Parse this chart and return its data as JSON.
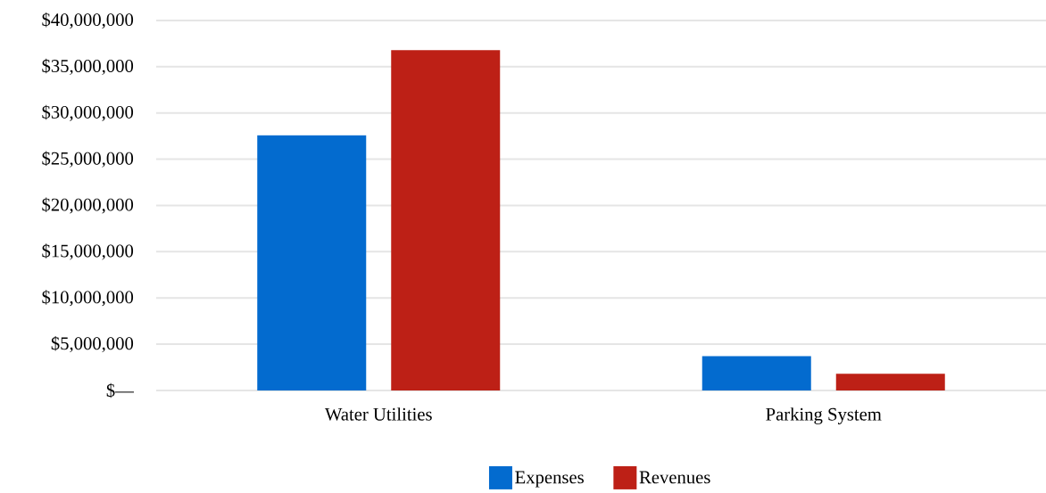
{
  "chart_data": {
    "type": "bar",
    "categories": [
      "Water Utilities",
      "Parking System"
    ],
    "series": [
      {
        "name": "Expenses",
        "color": "#036bcf",
        "values": [
          27600000,
          3700000
        ]
      },
      {
        "name": "Revenues",
        "color": "#bd2016",
        "values": [
          36800000,
          1800000
        ]
      }
    ],
    "ylim": [
      0,
      40000000
    ],
    "yticks": [
      {
        "value": 0,
        "label": "$—"
      },
      {
        "value": 5000000,
        "label": "$5,000,000"
      },
      {
        "value": 10000000,
        "label": "$10,000,000"
      },
      {
        "value": 15000000,
        "label": "$15,000,000"
      },
      {
        "value": 20000000,
        "label": "$20,000,000"
      },
      {
        "value": 25000000,
        "label": "$25,000,000"
      },
      {
        "value": 30000000,
        "label": "$30,000,000"
      },
      {
        "value": 35000000,
        "label": "$35,000,000"
      },
      {
        "value": 40000000,
        "label": "$40,000,000"
      }
    ],
    "grid": "y",
    "legend": "bottom"
  }
}
